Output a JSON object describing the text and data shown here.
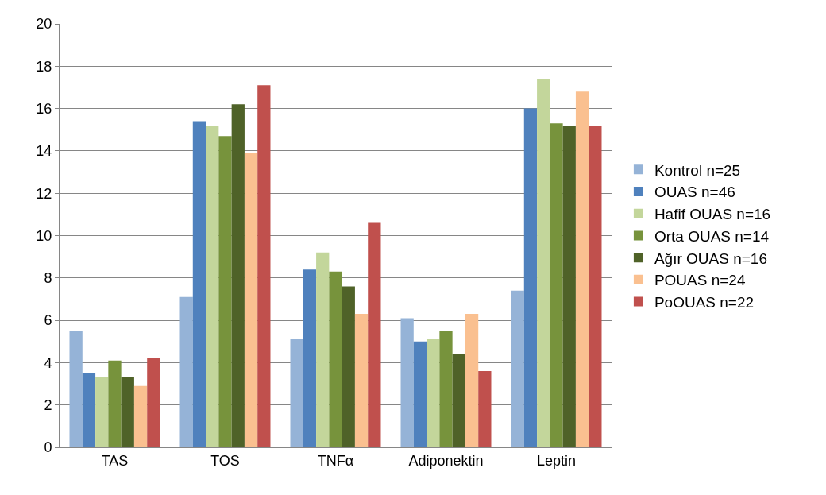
{
  "chart_data": {
    "type": "bar",
    "categories": [
      "TAS",
      "TOS",
      "TNFα",
      "Adiponektin",
      "Leptin"
    ],
    "series": [
      {
        "name": "Kontrol n=25",
        "color": "#95b3d7",
        "values": [
          5.5,
          7.1,
          5.1,
          6.1,
          7.4
        ]
      },
      {
        "name": "OUAS n=46",
        "color": "#4f81bd",
        "values": [
          3.5,
          15.4,
          8.4,
          5.0,
          16.0
        ]
      },
      {
        "name": "Hafif OUAS n=16",
        "color": "#c3d69b",
        "values": [
          3.3,
          15.2,
          9.2,
          5.1,
          17.4
        ]
      },
      {
        "name": "Orta OUAS n=14",
        "color": "#77933c",
        "values": [
          4.1,
          14.7,
          8.3,
          5.5,
          15.3
        ]
      },
      {
        "name": "Ağır OUAS n=16",
        "color": "#4f6228",
        "values": [
          3.3,
          16.2,
          7.6,
          4.4,
          15.2
        ]
      },
      {
        "name": "POUAS n=24",
        "color": "#fac090",
        "values": [
          2.9,
          13.9,
          6.3,
          6.3,
          16.8
        ]
      },
      {
        "name": "PoOUAS n=22",
        "color": "#c0504d",
        "values": [
          4.2,
          17.1,
          10.6,
          3.6,
          15.2
        ]
      }
    ],
    "ylim": [
      0,
      20
    ],
    "yticks": [
      0,
      2,
      4,
      6,
      8,
      10,
      12,
      14,
      16,
      18,
      20
    ],
    "grid": "y",
    "legend": "right"
  }
}
